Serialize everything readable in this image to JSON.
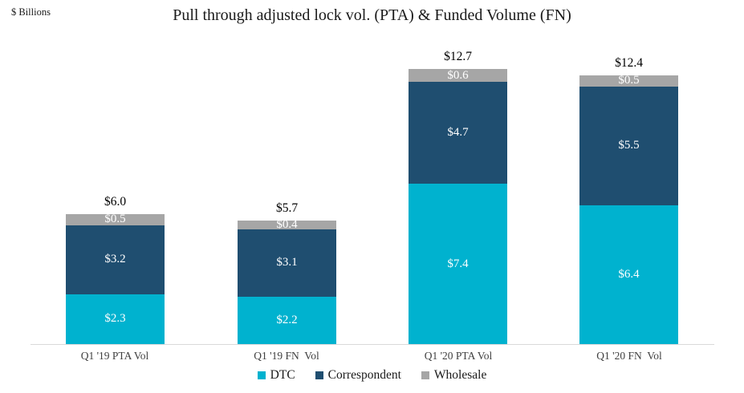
{
  "header": {
    "units_label": "$ Billions",
    "title": "Pull through adjusted lock vol. (PTA) & Funded Volume (FN)"
  },
  "chart_data": {
    "type": "bar",
    "stacked": true,
    "title": "Pull through adjusted lock vol. (PTA) & Funded Volume (FN)",
    "ylabel": "$ Billions",
    "ylim": [
      0,
      14
    ],
    "grid": false,
    "categories": [
      "Q1 '19 PTA Vol",
      "Q1 '19 FN  Vol",
      "Q1 '20 PTA Vol",
      "Q1 '20 FN  Vol"
    ],
    "series": [
      {
        "name": "DTC",
        "color": "#00B2CF",
        "values": [
          2.3,
          2.2,
          7.4,
          6.4
        ],
        "labels": [
          "$2.3",
          "$2.2",
          "$7.4",
          "$6.4"
        ]
      },
      {
        "name": "Correspondent",
        "color": "#1F4E70",
        "values": [
          3.2,
          3.1,
          4.7,
          5.5
        ],
        "labels": [
          "$3.2",
          "$3.1",
          "$4.7",
          "$5.5"
        ]
      },
      {
        "name": "Wholesale",
        "color": "#A6A6A6",
        "values": [
          0.5,
          0.4,
          0.6,
          0.5
        ],
        "labels": [
          "$0.5",
          "$0.4",
          "$0.6",
          "$0.5"
        ]
      }
    ],
    "totals": [
      6.0,
      5.7,
      12.7,
      12.4
    ],
    "total_labels": [
      "$6.0",
      "$5.7",
      "$12.7",
      "$12.4"
    ],
    "legend": {
      "position": "bottom",
      "entries": [
        "DTC",
        "Correspondent",
        "Wholesale"
      ]
    },
    "colors": {
      "axis_line": "#D9D9D9",
      "segment_text": "#FFFFFF",
      "label_text": "#000000"
    }
  }
}
